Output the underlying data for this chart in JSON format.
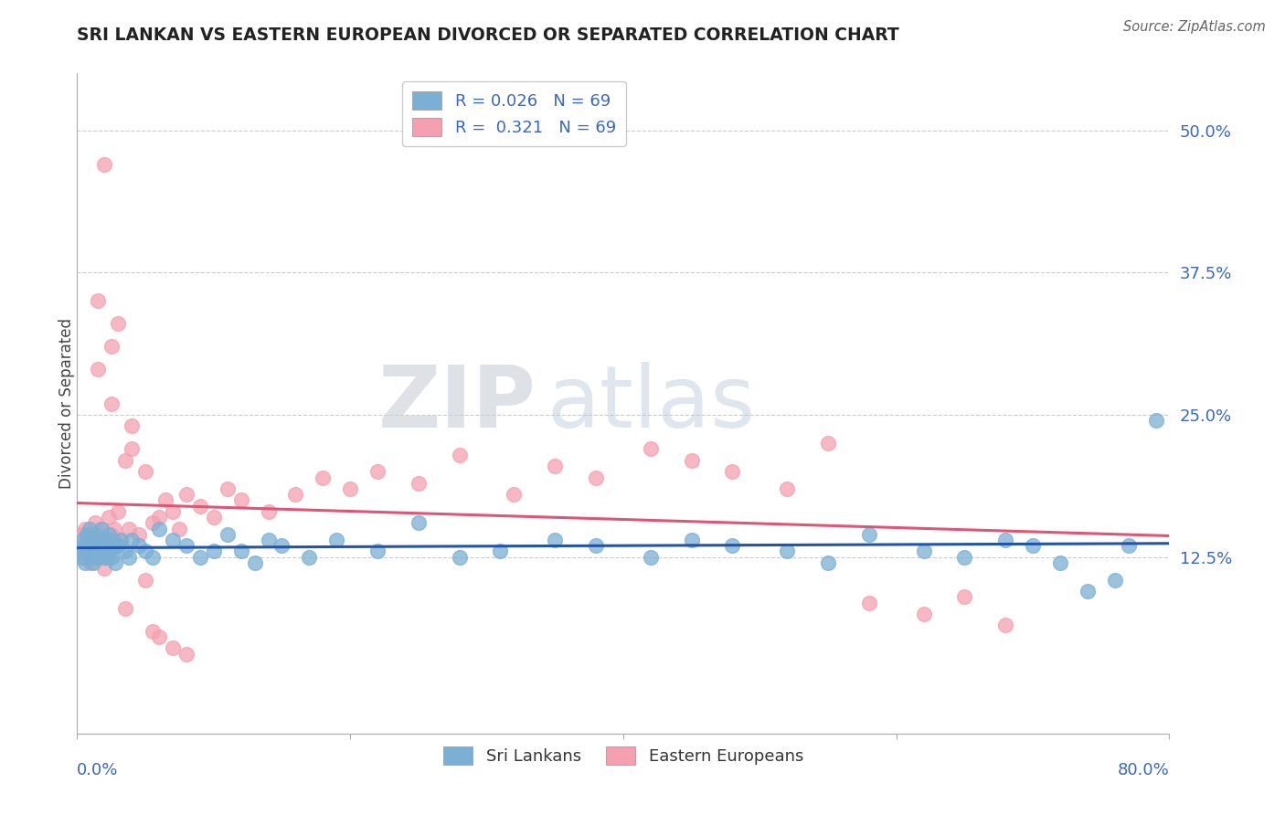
{
  "title": "SRI LANKAN VS EASTERN EUROPEAN DIVORCED OR SEPARATED CORRELATION CHART",
  "source": "Source: ZipAtlas.com",
  "ylabel": "Divorced or Separated",
  "xlim": [
    0.0,
    80.0
  ],
  "ylim": [
    -3.0,
    55.0
  ],
  "yticks": [
    0.0,
    12.5,
    25.0,
    37.5,
    50.0
  ],
  "ytick_labels": [
    "",
    "12.5%",
    "25.0%",
    "37.5%",
    "50.0%"
  ],
  "xticks": [
    0,
    20,
    40,
    60,
    80
  ],
  "background_color": "#ffffff",
  "grid_color": "#cccccc",
  "watermark_zip": "ZIP",
  "watermark_atlas": "atlas",
  "sri_lankan_color": "#7bafd4",
  "sri_lankan_edge": "#5590be",
  "eastern_european_color": "#f4a0b0",
  "eastern_european_edge": "#e07090",
  "sri_lankan_line_color": "#2255aa",
  "eastern_european_line_color": "#e05575",
  "R_sri": 0.026,
  "R_eastern": 0.321,
  "N_sri": 69,
  "N_eastern": 69,
  "legend_label_sri": "Sri Lankans",
  "legend_label_eastern": "Eastern Europeans",
  "sri_lankan_x": [
    0.2,
    0.3,
    0.4,
    0.5,
    0.6,
    0.7,
    0.8,
    0.9,
    1.0,
    1.0,
    1.1,
    1.2,
    1.3,
    1.4,
    1.5,
    1.6,
    1.7,
    1.8,
    2.0,
    2.0,
    2.1,
    2.2,
    2.3,
    2.4,
    2.5,
    2.6,
    2.7,
    2.8,
    3.0,
    3.2,
    3.5,
    3.8,
    4.0,
    4.5,
    5.0,
    5.5,
    6.0,
    7.0,
    8.0,
    9.0,
    10.0,
    11.0,
    12.0,
    13.0,
    14.0,
    15.0,
    17.0,
    19.0,
    22.0,
    25.0,
    28.0,
    31.0,
    35.0,
    38.0,
    42.0,
    45.0,
    48.0,
    52.0,
    55.0,
    58.0,
    62.0,
    65.0,
    68.0,
    70.0,
    72.0,
    74.0,
    76.0,
    77.0,
    79.0
  ],
  "sri_lankan_y": [
    13.0,
    12.5,
    14.0,
    13.5,
    12.0,
    14.5,
    13.0,
    15.0,
    12.5,
    14.0,
    13.5,
    12.0,
    14.5,
    13.0,
    12.5,
    14.0,
    13.5,
    15.0,
    12.5,
    14.0,
    13.0,
    12.5,
    14.5,
    13.0,
    12.5,
    14.0,
    13.5,
    12.0,
    13.5,
    14.0,
    13.0,
    12.5,
    14.0,
    13.5,
    13.0,
    12.5,
    15.0,
    14.0,
    13.5,
    12.5,
    13.0,
    14.5,
    13.0,
    12.0,
    14.0,
    13.5,
    12.5,
    14.0,
    13.0,
    15.5,
    12.5,
    13.0,
    14.0,
    13.5,
    12.5,
    14.0,
    13.5,
    13.0,
    12.0,
    14.5,
    13.0,
    12.5,
    14.0,
    13.5,
    12.0,
    9.5,
    10.5,
    13.5,
    24.5
  ],
  "eastern_european_x": [
    0.2,
    0.3,
    0.5,
    0.6,
    0.8,
    1.0,
    1.0,
    1.2,
    1.3,
    1.5,
    1.5,
    1.7,
    1.8,
    2.0,
    2.0,
    2.2,
    2.3,
    2.5,
    2.5,
    2.7,
    2.8,
    3.0,
    3.2,
    3.5,
    3.8,
    4.0,
    4.5,
    5.0,
    5.5,
    6.0,
    6.5,
    7.0,
    7.5,
    8.0,
    9.0,
    10.0,
    11.0,
    12.0,
    14.0,
    16.0,
    18.0,
    20.0,
    22.0,
    25.0,
    28.0,
    32.0,
    35.0,
    38.0,
    42.0,
    45.0,
    48.0,
    52.0,
    55.0,
    58.0,
    62.0,
    65.0,
    68.0,
    2.0,
    3.0,
    1.5,
    2.5,
    4.0,
    5.0,
    6.0,
    7.0,
    2.0,
    3.5,
    5.5,
    8.0
  ],
  "eastern_european_y": [
    13.0,
    14.5,
    12.5,
    15.0,
    13.5,
    12.0,
    14.5,
    13.0,
    15.5,
    14.0,
    29.0,
    13.5,
    15.0,
    12.5,
    14.0,
    13.0,
    16.0,
    14.5,
    31.0,
    15.0,
    13.5,
    16.5,
    14.0,
    21.0,
    15.0,
    22.0,
    14.5,
    20.0,
    15.5,
    16.0,
    17.5,
    16.5,
    15.0,
    18.0,
    17.0,
    16.0,
    18.5,
    17.5,
    16.5,
    18.0,
    19.5,
    18.5,
    20.0,
    19.0,
    21.5,
    18.0,
    20.5,
    19.5,
    22.0,
    21.0,
    20.0,
    18.5,
    22.5,
    8.5,
    7.5,
    9.0,
    6.5,
    47.0,
    33.0,
    35.0,
    26.0,
    24.0,
    10.5,
    5.5,
    4.5,
    11.5,
    8.0,
    6.0,
    4.0
  ]
}
